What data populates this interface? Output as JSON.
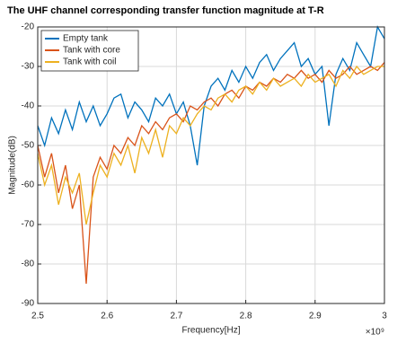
{
  "chart_data": {
    "type": "line",
    "title": "The UHF channel corresponding transfer function magnitude at T-R",
    "x_label": "Frequency[Hz]",
    "y_label": "Magnitude(dB)",
    "x_exponent_label": "×10⁹",
    "x": [
      2.5,
      2.51,
      2.52,
      2.53,
      2.54,
      2.55,
      2.56,
      2.57,
      2.58,
      2.59,
      2.6,
      2.61,
      2.62,
      2.63,
      2.64,
      2.65,
      2.66,
      2.67,
      2.68,
      2.69,
      2.7,
      2.71,
      2.72,
      2.73,
      2.74,
      2.75,
      2.76,
      2.77,
      2.78,
      2.79,
      2.8,
      2.81,
      2.82,
      2.83,
      2.84,
      2.85,
      2.86,
      2.87,
      2.88,
      2.89,
      2.9,
      2.91,
      2.92,
      2.93,
      2.94,
      2.95,
      2.96,
      2.97,
      2.98,
      2.99,
      3
    ],
    "series": [
      {
        "name": "Empty tank",
        "color": "#0072bd",
        "values": [
          -45,
          -50,
          -43,
          -47,
          -41,
          -46,
          -39,
          -44,
          -40,
          -45,
          -42,
          -38,
          -37,
          -43,
          -39,
          -41,
          -44,
          -38,
          -40,
          -37,
          -42,
          -39,
          -45,
          -55,
          -40,
          -35,
          -33,
          -36,
          -31,
          -34,
          -30,
          -33,
          -29,
          -27,
          -31,
          -28,
          -26,
          -24,
          -30,
          -28,
          -32,
          -30,
          -45,
          -32,
          -28,
          -31,
          -24,
          -27,
          -30,
          -20,
          -23
        ]
      },
      {
        "name": "Tank with core",
        "color": "#d95319",
        "values": [
          -50,
          -58,
          -52,
          -62,
          -55,
          -66,
          -60,
          -85,
          -58,
          -53,
          -56,
          -50,
          -52,
          -48,
          -50,
          -45,
          -47,
          -44,
          -46,
          -43,
          -42,
          -44,
          -40,
          -41,
          -39,
          -38,
          -40,
          -37,
          -36,
          -38,
          -35,
          -36,
          -34,
          -35,
          -33,
          -34,
          -32,
          -33,
          -31,
          -33,
          -32,
          -34,
          -31,
          -33,
          -32,
          -30,
          -32,
          -31,
          -30,
          -31,
          -29
        ]
      },
      {
        "name": "Tank with coil",
        "color": "#edb120",
        "values": [
          -52,
          -60,
          -55,
          -65,
          -58,
          -62,
          -57,
          -70,
          -62,
          -55,
          -58,
          -52,
          -55,
          -50,
          -57,
          -48,
          -52,
          -46,
          -53,
          -45,
          -47,
          -43,
          -45,
          -42,
          -40,
          -41,
          -38,
          -37,
          -39,
          -36,
          -35,
          -37,
          -34,
          -36,
          -33,
          -35,
          -34,
          -33,
          -35,
          -32,
          -34,
          -33,
          -32,
          -35,
          -31,
          -33,
          -30,
          -32,
          -31,
          -30,
          -30
        ]
      }
    ],
    "xlim": [
      2.5,
      3
    ],
    "xticks": [
      2.5,
      2.6,
      2.7,
      2.8,
      2.9,
      3
    ],
    "ylim": [
      -90,
      -20
    ],
    "yticks": [
      -90,
      -80,
      -70,
      -60,
      -50,
      -40,
      -30,
      -20
    ],
    "grid": true,
    "legend": "top-left"
  }
}
